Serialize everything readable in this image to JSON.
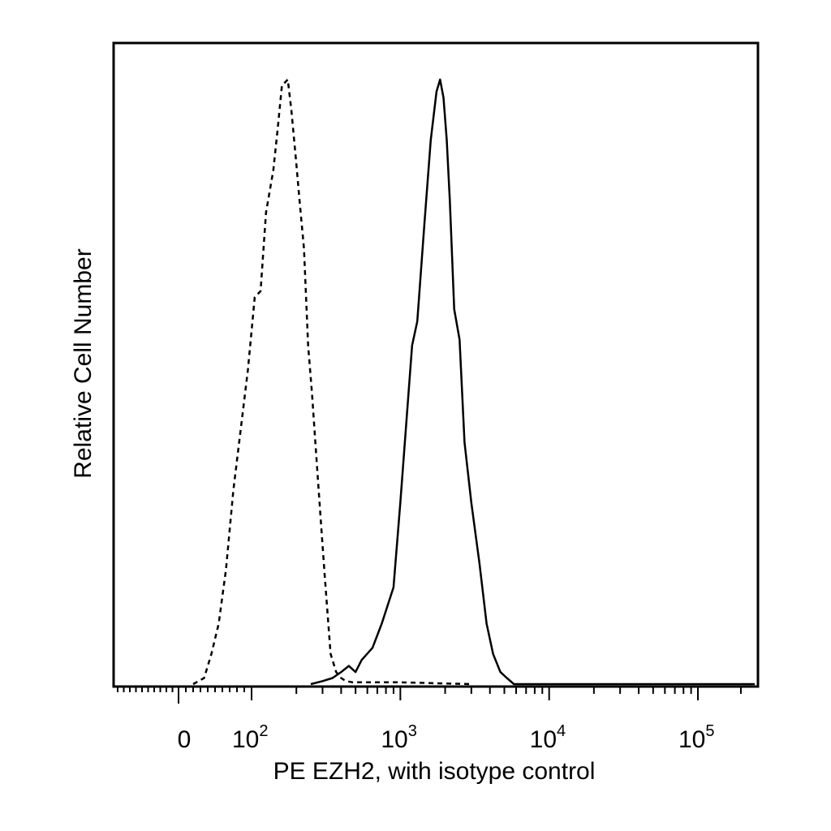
{
  "chart_data": {
    "type": "line",
    "title": "",
    "xlabel": "PE EZH2, with isotype control",
    "ylabel": "Relative Cell Number",
    "x_scale": "biexponential",
    "xlim": [
      -30,
      250000
    ],
    "ylim": [
      0,
      1
    ],
    "grid": false,
    "legend": "none",
    "x_tick_labels": [
      {
        "value": 0,
        "base": "0",
        "exp": ""
      },
      {
        "value": 100,
        "base": "10",
        "exp": "2"
      },
      {
        "value": 1000,
        "base": "10",
        "exp": "3"
      },
      {
        "value": 10000,
        "base": "10",
        "exp": "4"
      },
      {
        "value": 100000,
        "base": "10",
        "exp": "5"
      }
    ],
    "series": [
      {
        "style": "dashed",
        "x": [
          20,
          35,
          45,
          55,
          65,
          75,
          85,
          95,
          105,
          115,
          125,
          140,
          150,
          160,
          175,
          185,
          200,
          210,
          225,
          240,
          255,
          270,
          290,
          310,
          340,
          370,
          400,
          430,
          480,
          600,
          1000,
          3000
        ],
        "y": [
          0,
          0.01,
          0.05,
          0.1,
          0.19,
          0.32,
          0.42,
          0.52,
          0.64,
          0.65,
          0.78,
          0.85,
          0.92,
          0.99,
          1.0,
          0.95,
          0.86,
          0.8,
          0.72,
          0.56,
          0.48,
          0.39,
          0.28,
          0.18,
          0.05,
          0.02,
          0.01,
          0.005,
          0.003,
          0.003,
          0.003,
          0
        ]
      },
      {
        "style": "solid",
        "x": [
          250,
          300,
          350,
          400,
          450,
          500,
          550,
          650,
          750,
          900,
          1000,
          1200,
          1300,
          1450,
          1600,
          1750,
          1850,
          1950,
          2050,
          2150,
          2300,
          2500,
          2700,
          3000,
          3400,
          3800,
          4200,
          4700,
          5200,
          5800,
          7000,
          250000
        ],
        "y": [
          0,
          0.005,
          0.01,
          0.02,
          0.03,
          0.02,
          0.04,
          0.06,
          0.1,
          0.16,
          0.3,
          0.56,
          0.6,
          0.76,
          0.9,
          0.98,
          1.0,
          0.97,
          0.9,
          0.8,
          0.62,
          0.57,
          0.4,
          0.3,
          0.2,
          0.1,
          0.05,
          0.02,
          0.01,
          0,
          0,
          0
        ]
      }
    ]
  }
}
